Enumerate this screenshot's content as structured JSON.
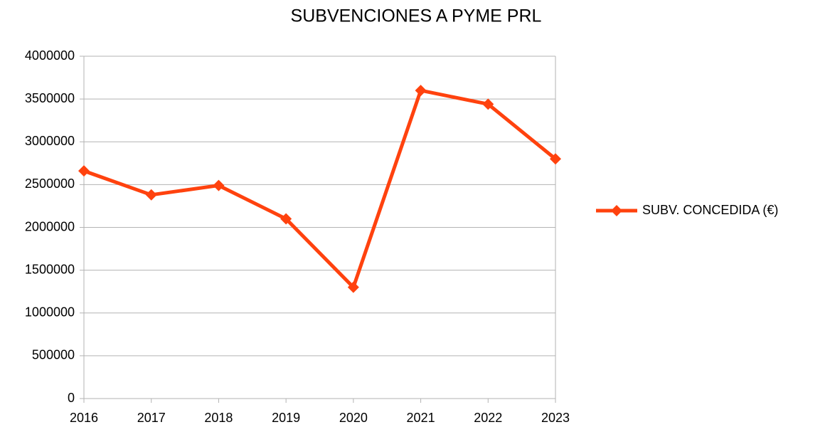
{
  "chart_data": {
    "type": "line",
    "title": "SUBVENCIONES A PYME PRL",
    "categories": [
      "2016",
      "2017",
      "2018",
      "2019",
      "2020",
      "2021",
      "2022",
      "2023"
    ],
    "series": [
      {
        "name": "SUBV. CONCEDIDA (€)",
        "color": "#ff420e",
        "values": [
          2660000,
          2380000,
          2490000,
          2100000,
          1300000,
          3600000,
          3440000,
          2800000
        ]
      }
    ],
    "ylim": [
      0,
      4000000
    ],
    "yticks": [
      0,
      500000,
      1000000,
      1500000,
      2000000,
      2500000,
      3000000,
      3500000,
      4000000
    ],
    "grid": true,
    "legend": "right"
  }
}
